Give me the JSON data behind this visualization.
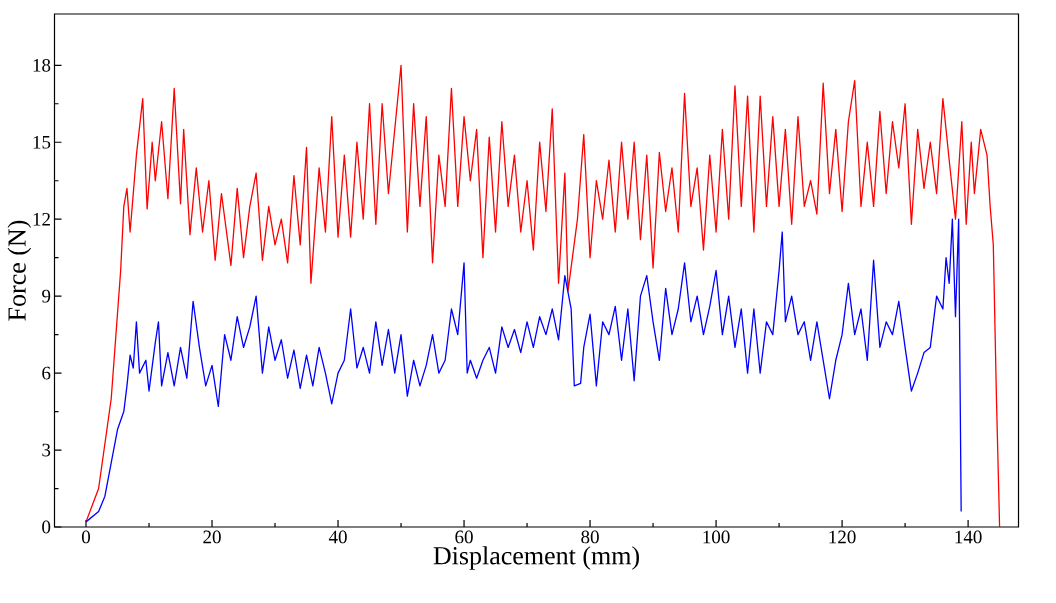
{
  "chart_data": {
    "type": "line",
    "xlabel": "Displacement (mm)",
    "ylabel": "Force (N)",
    "xlim": [
      -5,
      148
    ],
    "ylim": [
      0,
      20
    ],
    "xticks": [
      0,
      20,
      40,
      60,
      80,
      100,
      120,
      140
    ],
    "yticks": [
      0,
      3,
      6,
      9,
      12,
      15,
      18
    ],
    "grid": false,
    "marker": "none",
    "line_style": "solid",
    "series": [
      {
        "color": "#ff0000",
        "x": [
          0,
          2,
          4,
          5.5,
          6,
          6.5,
          7,
          8,
          9,
          9.7,
          10.5,
          11,
          12,
          13,
          14,
          15,
          15.5,
          16.5,
          17.5,
          18.5,
          19.5,
          20.5,
          21.5,
          23,
          24,
          25,
          26,
          27,
          28,
          29,
          30,
          31,
          32,
          33,
          34,
          35,
          35.7,
          37,
          38,
          39,
          40,
          41,
          42,
          43,
          44,
          45,
          46,
          47,
          48,
          49,
          50,
          51,
          52,
          53,
          54,
          55,
          56,
          57,
          58,
          59,
          60,
          61,
          62,
          63,
          64,
          65,
          66,
          67,
          68,
          69,
          70,
          71,
          72,
          73,
          74,
          75,
          76,
          76.5,
          78,
          79,
          80,
          81,
          82,
          83,
          84,
          85,
          86,
          87,
          88,
          89,
          90,
          91,
          92,
          93,
          94,
          95,
          96,
          97,
          98,
          99,
          100,
          101,
          102,
          103,
          104,
          105,
          106,
          107,
          108,
          109,
          110,
          111,
          112,
          113,
          114,
          115,
          116,
          117,
          118,
          119,
          120,
          121,
          122,
          123,
          124,
          125,
          126,
          127,
          128,
          129,
          130,
          131,
          132,
          133,
          134,
          135,
          136,
          137,
          138,
          139,
          139.7,
          140.5,
          141,
          142,
          143,
          143.5,
          144,
          144.5,
          145
        ],
        "values": [
          0.2,
          1.5,
          5,
          10,
          12.5,
          13.2,
          11.5,
          14.5,
          16.7,
          12.4,
          15,
          13.5,
          15.8,
          12.8,
          17.1,
          12.6,
          15.5,
          11.4,
          14,
          11.5,
          13.5,
          10.4,
          13,
          10.2,
          13.2,
          10.5,
          12.5,
          13.8,
          10.4,
          12.5,
          11,
          12,
          10.3,
          13.7,
          11,
          14.8,
          9.5,
          14,
          11.5,
          16,
          11.3,
          14.5,
          11.3,
          15,
          12,
          16.5,
          11.8,
          16.5,
          13,
          15.5,
          18,
          11.5,
          16.5,
          12.5,
          16,
          10.3,
          14.5,
          12.5,
          17.1,
          12.5,
          16,
          13.5,
          15.5,
          10.5,
          15.2,
          11.5,
          15.8,
          12.5,
          14.5,
          11.5,
          13.5,
          10.8,
          15,
          12.3,
          16.3,
          9.5,
          13.8,
          9.2,
          12,
          15.3,
          10.5,
          13.5,
          12,
          14.3,
          11.5,
          15,
          12,
          15,
          11.2,
          14.5,
          10.1,
          14.6,
          12.3,
          14,
          11.5,
          16.9,
          12.5,
          14,
          10.8,
          14.5,
          11.5,
          15.5,
          12,
          17.2,
          12.5,
          16.8,
          11.5,
          16.8,
          12.5,
          16,
          12.5,
          15.5,
          11.8,
          16,
          12.5,
          13.5,
          12.2,
          17.3,
          13,
          15.5,
          12.3,
          15.8,
          17.4,
          12.5,
          15,
          12.5,
          16.2,
          13,
          15.8,
          14,
          16.5,
          11.8,
          15.5,
          13.2,
          15,
          13,
          16.7,
          14.3,
          12,
          15.8,
          11.8,
          15,
          13,
          15.5,
          14.5,
          12.5,
          11,
          5,
          0
        ]
      },
      {
        "color": "#0000ff",
        "x": [
          0,
          2,
          3,
          4,
          5,
          6,
          6.5,
          7,
          7.5,
          8,
          8.5,
          9.5,
          10,
          11,
          11.5,
          12,
          13,
          14,
          15,
          16,
          17,
          18,
          19,
          20,
          21,
          22,
          23,
          24,
          25,
          26,
          27,
          28,
          29,
          30,
          31,
          32,
          33,
          34,
          35,
          36,
          37,
          38,
          39,
          40,
          41,
          42,
          43,
          44,
          45,
          46,
          47,
          48,
          49,
          50,
          51,
          52,
          53,
          54,
          55,
          56,
          57,
          58,
          59,
          60,
          60.5,
          61,
          62,
          63,
          64,
          65,
          66,
          67,
          68,
          69,
          70,
          71,
          72,
          73,
          74,
          75,
          76,
          77,
          77.5,
          78.5,
          79,
          80,
          81,
          82,
          83,
          84,
          85,
          86,
          87,
          88,
          89,
          90,
          91,
          92,
          93,
          94,
          95,
          96,
          97,
          98,
          99,
          100,
          101,
          102,
          103,
          104,
          105,
          106,
          107,
          108,
          109,
          110,
          110.5,
          111,
          112,
          113,
          114,
          115,
          116,
          117,
          118,
          119,
          120,
          121,
          122,
          123,
          124,
          125,
          126,
          127,
          128,
          129,
          130,
          131,
          132,
          133,
          134,
          135,
          136,
          136.5,
          137,
          137.5,
          138,
          138.5,
          138.9
        ],
        "values": [
          0.2,
          0.6,
          1.2,
          2.5,
          3.8,
          4.5,
          5.5,
          6.7,
          6.2,
          8,
          6,
          6.5,
          5.3,
          7.2,
          8,
          5.5,
          6.8,
          5.5,
          7,
          5.8,
          8.8,
          7,
          5.5,
          6.3,
          4.7,
          7.5,
          6.5,
          8.2,
          7,
          7.8,
          9,
          6,
          7.8,
          6.5,
          7.3,
          5.8,
          6.9,
          5.4,
          6.7,
          5.5,
          7,
          6,
          4.8,
          6,
          6.5,
          8.5,
          6.2,
          7,
          6,
          8,
          6.3,
          7.7,
          6,
          7.5,
          5.1,
          6.5,
          5.5,
          6.3,
          7.5,
          6,
          6.5,
          8.5,
          7.5,
          10.3,
          6,
          6.5,
          5.8,
          6.5,
          7,
          6,
          7.8,
          7,
          7.7,
          6.8,
          8,
          7,
          8.2,
          7.5,
          8.5,
          7.3,
          9.8,
          8.5,
          5.5,
          5.6,
          7,
          8.3,
          5.5,
          8,
          7.5,
          8.6,
          6.5,
          8.5,
          5.7,
          9,
          9.8,
          8,
          6.5,
          9.3,
          7.5,
          8.5,
          10.3,
          8,
          9,
          7.5,
          8.6,
          10,
          7.5,
          9,
          7,
          8.5,
          6,
          8.5,
          6,
          8,
          7.5,
          10,
          11.5,
          8,
          9,
          7.5,
          8,
          6.5,
          8,
          6.5,
          5,
          6.5,
          7.5,
          9.5,
          7.5,
          8.5,
          6.5,
          10.4,
          7,
          8,
          7.5,
          8.8,
          7,
          5.3,
          6,
          6.8,
          7,
          9,
          8.5,
          10.5,
          9.5,
          12,
          8.2,
          12,
          0.6
        ]
      }
    ]
  }
}
